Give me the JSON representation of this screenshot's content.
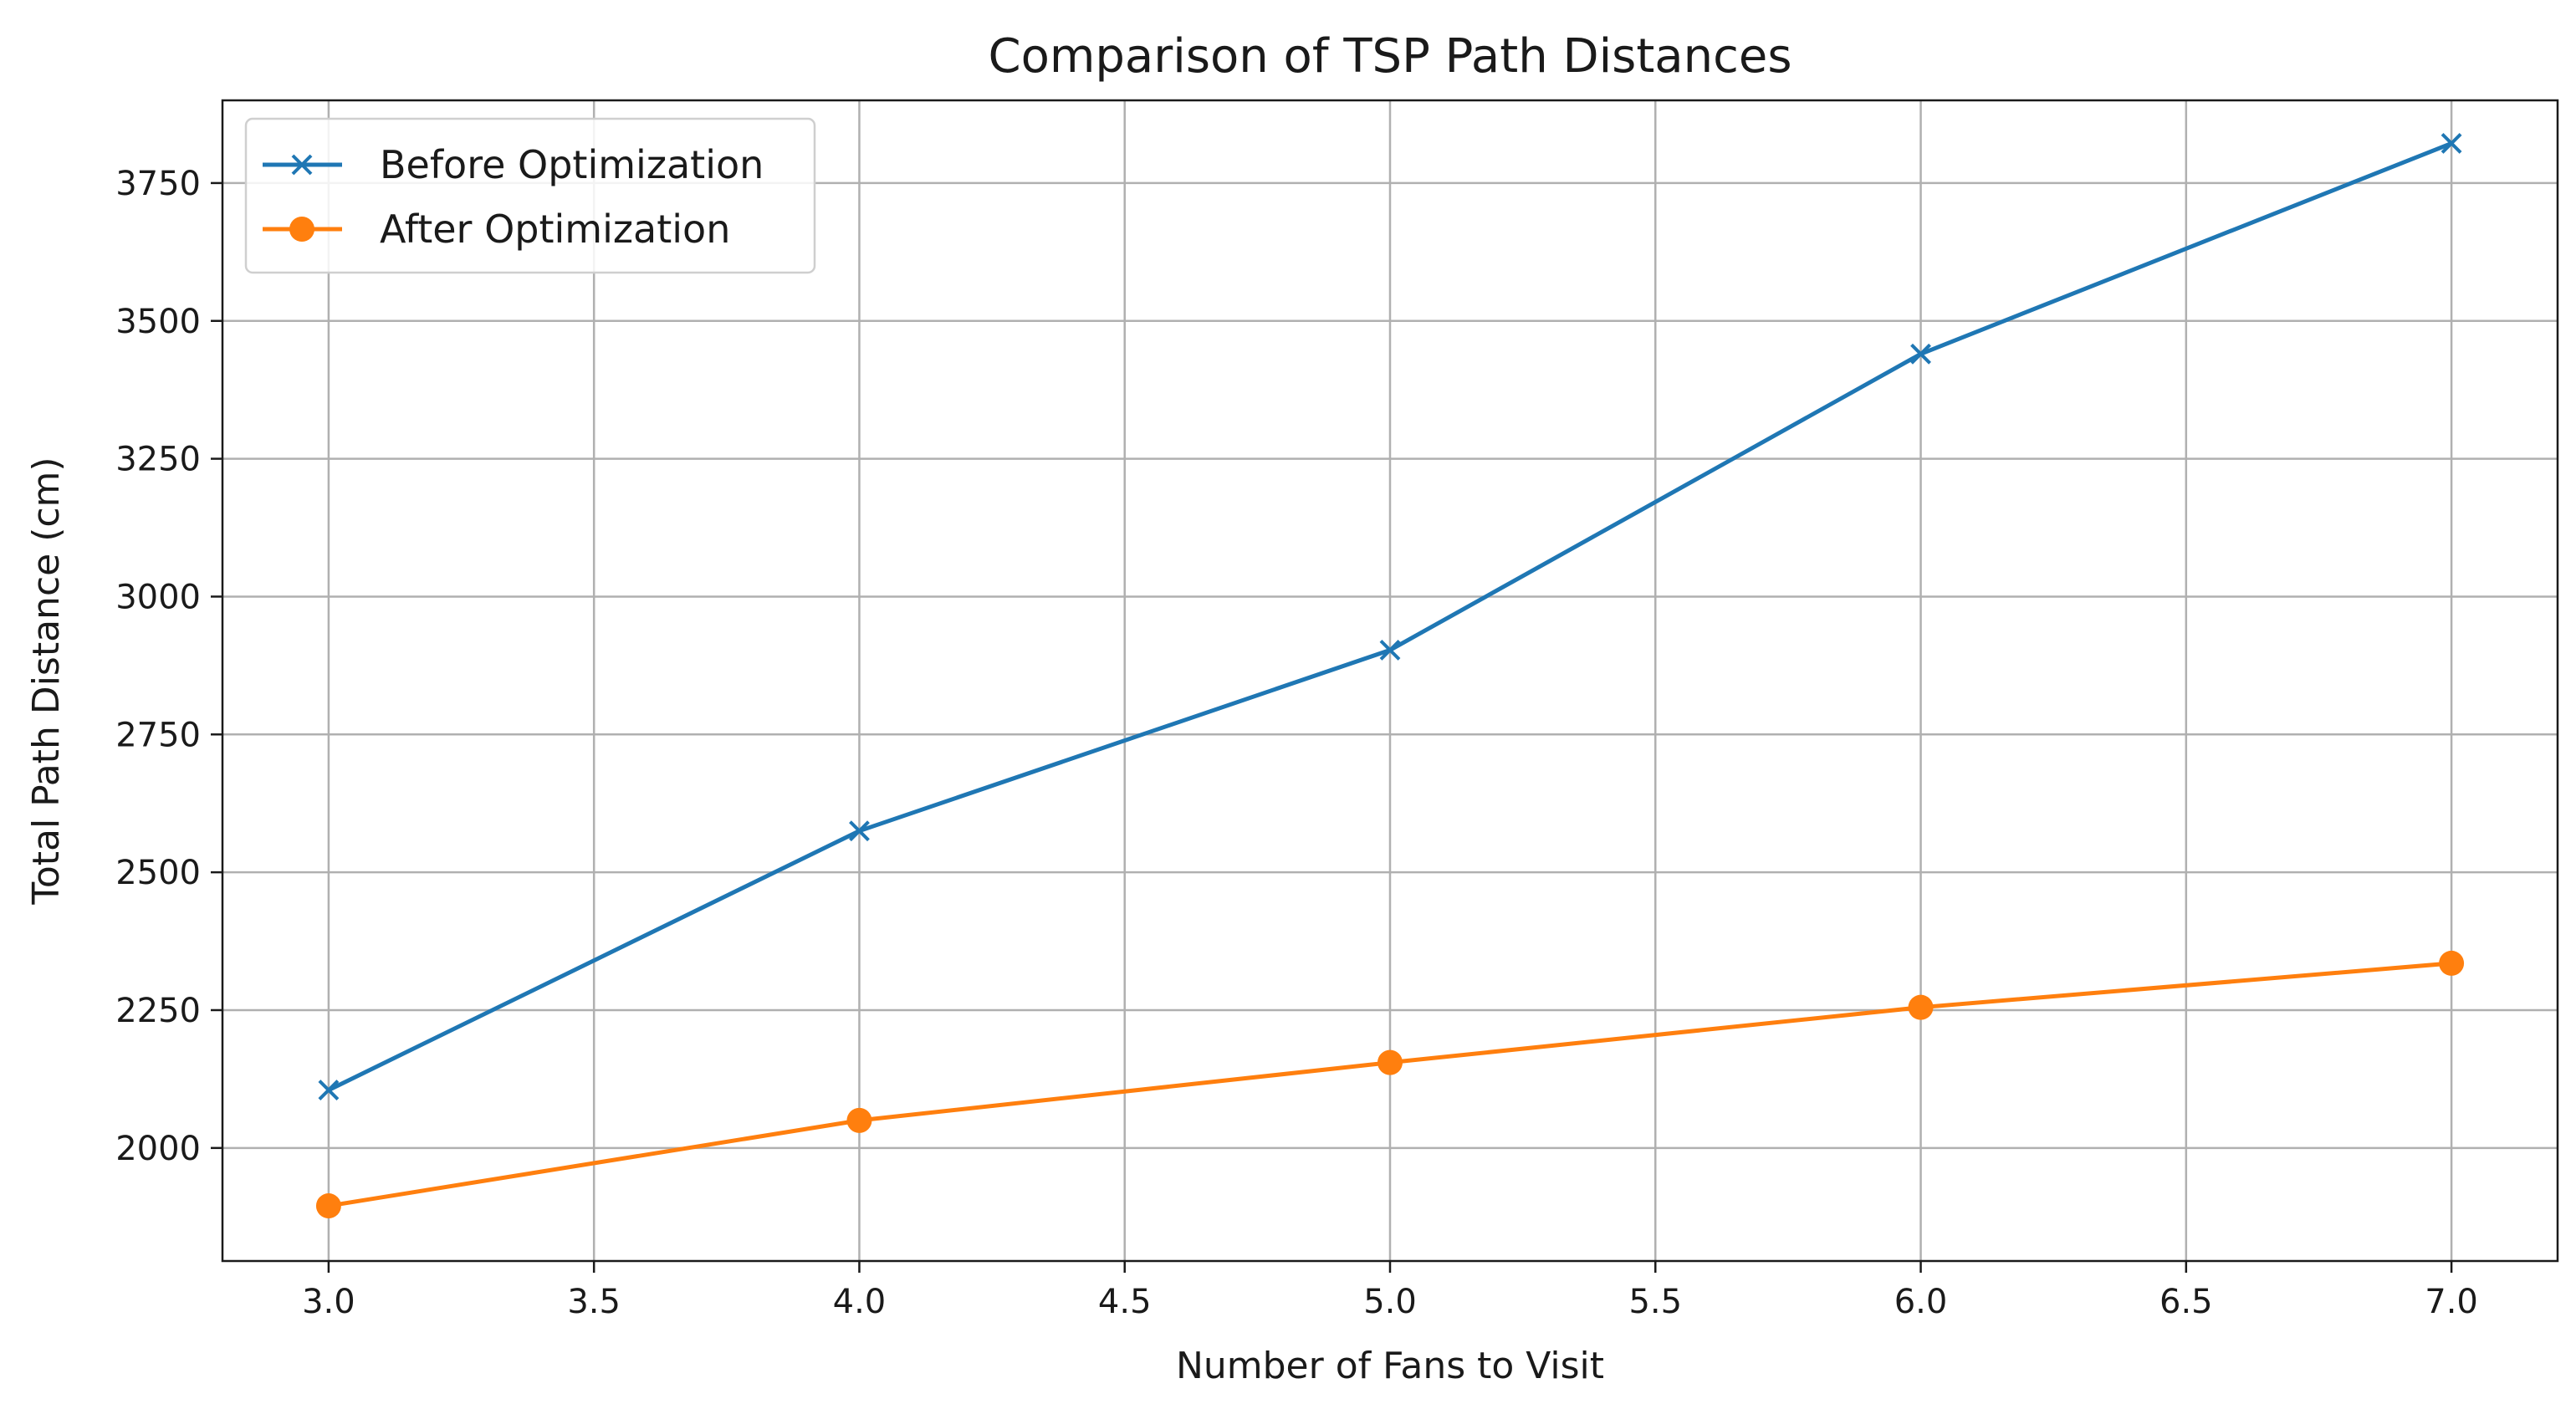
{
  "chart_data": {
    "type": "line",
    "title": "Comparison of TSP Path Distances",
    "xlabel": "Number of Fans to Visit",
    "ylabel": "Total Path Distance (cm)",
    "xlim": [
      2.8,
      7.2
    ],
    "ylim": [
      1795,
      3900
    ],
    "x": [
      3,
      4,
      5,
      6,
      7
    ],
    "x_ticks": [
      3.0,
      3.5,
      4.0,
      4.5,
      5.0,
      5.5,
      6.0,
      6.5,
      7.0
    ],
    "x_tick_labels": [
      "3.0",
      "3.5",
      "4.0",
      "4.5",
      "5.0",
      "5.5",
      "6.0",
      "6.5",
      "7.0"
    ],
    "y_ticks": [
      2000,
      2250,
      2500,
      2750,
      3000,
      3250,
      3500,
      3750
    ],
    "y_tick_labels": [
      "2000",
      "2250",
      "2500",
      "2750",
      "3000",
      "3250",
      "3500",
      "3750"
    ],
    "grid": true,
    "legend": {
      "position": "upper-left"
    },
    "series": [
      {
        "name": "Before Optimization",
        "values": [
          2105,
          2575,
          2903,
          3440,
          3822
        ],
        "color": "#1f77b4",
        "marker": "x"
      },
      {
        "name": "After Optimization",
        "values": [
          1895,
          2050,
          2155,
          2255,
          2335
        ],
        "color": "#ff7f0e",
        "marker": "circle"
      }
    ]
  }
}
